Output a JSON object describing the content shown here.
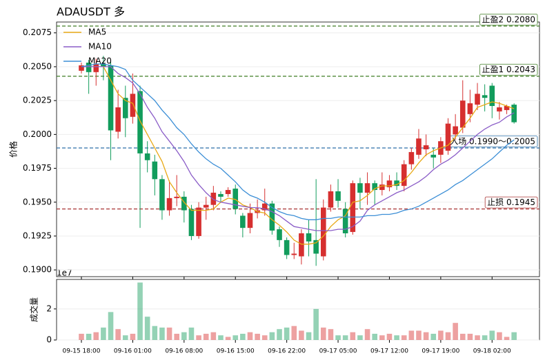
{
  "chart_data": {
    "type": "candlestick",
    "title": "ADAUSDT  多",
    "ylabel": "价格",
    "categories": [
      "09-15 18:00",
      null,
      null,
      null,
      null,
      null,
      null,
      "09-16 01:00",
      null,
      null,
      null,
      null,
      null,
      null,
      "09-16 08:00",
      null,
      null,
      null,
      null,
      null,
      null,
      "09-16 15:00",
      null,
      null,
      null,
      null,
      null,
      null,
      "09-16 22:00",
      null,
      null,
      null,
      null,
      null,
      null,
      "09-17 05:00",
      null,
      null,
      null,
      null,
      null,
      null,
      "09-17 12:00",
      null,
      null,
      null,
      null,
      null,
      null,
      "09-17 19:00",
      null,
      null,
      null,
      null,
      null,
      null,
      "09-18 02:00",
      null,
      null,
      null
    ],
    "open": [
      0.2047,
      0.2053,
      0.2046,
      0.2052,
      0.2051,
      0.2002,
      0.2027,
      0.2013,
      0.2032,
      0.1986,
      0.198,
      0.1967,
      0.1944,
      0.1953,
      0.1954,
      0.1945,
      0.1925,
      0.1946,
      0.1948,
      0.1956,
      0.1956,
      0.196,
      0.194,
      0.1931,
      0.1942,
      0.1944,
      0.1949,
      0.193,
      0.1922,
      0.1911,
      0.191,
      0.1927,
      0.1922,
      0.191,
      0.1946,
      0.1958,
      0.1945,
      0.1928,
      0.1964,
      0.1957,
      0.1964,
      0.1959,
      0.1961,
      0.1966,
      0.1962,
      0.1978,
      0.1985,
      0.1989,
      0.1985,
      0.1985,
      0.1988,
      0.2,
      0.2005,
      0.2015,
      0.2022,
      0.2029,
      0.2036,
      0.2017,
      0.2018,
      0.2022
    ],
    "high": [
      0.2053,
      0.2055,
      0.2056,
      0.2058,
      0.2055,
      0.2033,
      0.2036,
      0.2045,
      0.2036,
      0.1995,
      0.1985,
      0.197,
      0.1966,
      0.197,
      0.1958,
      0.1948,
      0.195,
      0.1954,
      0.1962,
      0.1958,
      0.1961,
      0.1963,
      0.1942,
      0.1949,
      0.1952,
      0.196,
      0.1951,
      0.1932,
      0.1924,
      0.192,
      0.193,
      0.1937,
      0.1967,
      0.1952,
      0.1963,
      0.1967,
      0.195,
      0.1966,
      0.1968,
      0.1972,
      0.1966,
      0.1972,
      0.197,
      0.1972,
      0.1981,
      0.199,
      0.2004,
      0.2,
      0.199,
      0.1998,
      0.2012,
      0.2015,
      0.204,
      0.2033,
      0.2038,
      0.2037,
      0.2038,
      0.2024,
      0.2022,
      0.2023
    ],
    "low": [
      0.2045,
      0.203,
      0.2036,
      0.204,
      0.1981,
      0.1997,
      0.1998,
      0.2008,
      0.1931,
      0.1972,
      0.1955,
      0.1937,
      0.194,
      0.1947,
      0.1935,
      0.1922,
      0.1923,
      0.1937,
      0.1944,
      0.195,
      0.1954,
      0.1941,
      0.1924,
      0.1927,
      0.1938,
      0.194,
      0.1926,
      0.1917,
      0.1908,
      0.1908,
      0.1904,
      0.191,
      0.1903,
      0.1907,
      0.1943,
      0.1946,
      0.1924,
      0.1926,
      0.1945,
      0.1948,
      0.1948,
      0.1955,
      0.1958,
      0.1959,
      0.1958,
      0.1974,
      0.1982,
      0.1984,
      0.1975,
      0.1979,
      0.1985,
      0.1996,
      0.2001,
      0.2009,
      0.2018,
      0.2017,
      0.2012,
      0.2011,
      0.2015,
      0.2008
    ],
    "close": [
      0.2051,
      0.2046,
      0.2052,
      0.205,
      0.2003,
      0.202,
      0.2012,
      0.203,
      0.1986,
      0.1981,
      0.1967,
      0.1944,
      0.1953,
      0.1954,
      0.1944,
      0.1925,
      0.1946,
      0.1948,
      0.1957,
      0.1954,
      0.1959,
      0.1945,
      0.1931,
      0.1942,
      0.1944,
      0.1949,
      0.1929,
      0.1922,
      0.1911,
      0.1912,
      0.1927,
      0.1921,
      0.1912,
      0.1946,
      0.1958,
      0.1951,
      0.1927,
      0.1964,
      0.1957,
      0.1964,
      0.1959,
      0.1963,
      0.1966,
      0.1962,
      0.1978,
      0.1987,
      0.1997,
      0.1992,
      0.1983,
      0.1995,
      0.2008,
      0.2006,
      0.2025,
      0.2023,
      0.203,
      0.2027,
      0.2021,
      0.202,
      0.2021,
      0.2009
    ],
    "up_color": "#d62f2f",
    "down_color": "#129c5c",
    "series": [
      {
        "name": "MA5",
        "color": "#e8a813",
        "values": [
          0.205,
          0.205,
          0.205,
          0.205,
          0.204,
          0.203,
          0.2025,
          0.2023,
          0.201,
          0.2,
          0.199,
          0.198,
          0.1965,
          0.1957,
          0.195,
          0.1944,
          0.1944,
          0.1944,
          0.1945,
          0.195,
          0.1953,
          0.1952,
          0.1948,
          0.1946,
          0.1943,
          0.1942,
          0.1937,
          0.1933,
          0.1928,
          0.1922,
          0.1919,
          0.1919,
          0.192,
          0.1925,
          0.1932,
          0.1937,
          0.194,
          0.195,
          0.1951,
          0.1955,
          0.196,
          0.1962,
          0.1962,
          0.1963,
          0.1966,
          0.1972,
          0.1979,
          0.1985,
          0.1988,
          0.199,
          0.1992,
          0.1998,
          0.2005,
          0.2012,
          0.202,
          0.2022,
          0.2024,
          0.2023,
          0.2021,
          0.2019
        ]
      },
      {
        "name": "MA10",
        "color": "#8a5cc7",
        "values": [
          0.205,
          0.205,
          0.205,
          0.205,
          0.205,
          0.2045,
          0.2042,
          0.2038,
          0.203,
          0.202,
          0.2012,
          0.2002,
          0.1995,
          0.1988,
          0.198,
          0.197,
          0.1963,
          0.1957,
          0.1952,
          0.195,
          0.1949,
          0.1948,
          0.1947,
          0.1946,
          0.1946,
          0.1945,
          0.1943,
          0.194,
          0.1936,
          0.1932,
          0.1931,
          0.193,
          0.1929,
          0.1929,
          0.1929,
          0.193,
          0.193,
          0.1932,
          0.1936,
          0.1944,
          0.1948,
          0.1951,
          0.1954,
          0.1957,
          0.1959,
          0.1962,
          0.1965,
          0.1969,
          0.1974,
          0.1978,
          0.1981,
          0.1985,
          0.199,
          0.1995,
          0.2,
          0.2004,
          0.2007,
          0.2009,
          0.2013,
          0.2016
        ]
      },
      {
        "name": "MA20",
        "color": "#3b8ed6",
        "values": [
          0.205,
          0.2051,
          0.2052,
          0.2052,
          0.2051,
          0.205,
          0.2048,
          0.204,
          0.2035,
          0.203,
          0.2025,
          0.2018,
          0.2012,
          0.2005,
          0.2,
          0.1993,
          0.1987,
          0.1982,
          0.1978,
          0.1975,
          0.197,
          0.1965,
          0.1959,
          0.1955,
          0.1953,
          0.195,
          0.1946,
          0.1943,
          0.1941,
          0.194,
          0.1938,
          0.1937,
          0.1937,
          0.1938,
          0.1938,
          0.1939,
          0.1939,
          0.1939,
          0.1939,
          0.194,
          0.194,
          0.1941,
          0.1941,
          0.1942,
          0.1944,
          0.1945,
          0.1947,
          0.195,
          0.1953,
          0.1956,
          0.1959,
          0.1963,
          0.1966,
          0.197,
          0.1974,
          0.1978,
          0.1982,
          0.1987,
          0.1992,
          0.1996
        ]
      }
    ],
    "ylim": [
      0.1895,
      0.2083
    ],
    "yticks": [
      {
        "value": 0.19,
        "label": "0.1900"
      },
      0.1925,
      {
        "value": 0.195,
        "label": "0.1950"
      },
      0.1975,
      {
        "value": 0.2,
        "label": "0.2000"
      },
      0.2025,
      {
        "value": 0.205,
        "label": "0.2050"
      },
      0.2075
    ],
    "grid": true,
    "legend": "upper left",
    "levels": [
      {
        "label": "止盈2 0.2080",
        "value": 0.208,
        "color": "#3f7d23"
      },
      {
        "label": "止盈1 0.2043",
        "value": 0.2043,
        "color": "#3f7d23"
      },
      {
        "label": "入场 0.1990～0.2005",
        "value": 0.199,
        "color": "#2a6ea6"
      },
      {
        "label": "止损 0.1945",
        "value": 0.1945,
        "color": "#a83232"
      }
    ],
    "volume": {
      "ylabel": "成交量",
      "offset": "1e7",
      "values": [
        0.4,
        0.4,
        0.5,
        0.8,
        1.8,
        0.7,
        0.3,
        0.4,
        3.7,
        1.5,
        0.9,
        0.8,
        0.8,
        0.4,
        0.5,
        0.8,
        0.3,
        0.4,
        0.5,
        0.3,
        0.2,
        0.3,
        0.4,
        0.5,
        0.4,
        0.3,
        0.5,
        0.7,
        0.8,
        0.9,
        0.6,
        0.5,
        2.0,
        0.8,
        0.7,
        0.3,
        0.3,
        0.5,
        0.3,
        0.7,
        0.4,
        0.3,
        0.4,
        0.3,
        0.3,
        0.6,
        0.6,
        0.5,
        0.4,
        0.6,
        0.5,
        1.1,
        0.4,
        0.4,
        0.3,
        0.3,
        0.6,
        0.5,
        0.2,
        0.5
      ],
      "ylim": [
        0,
        3.9
      ],
      "yticks": [
        0,
        2
      ]
    }
  }
}
